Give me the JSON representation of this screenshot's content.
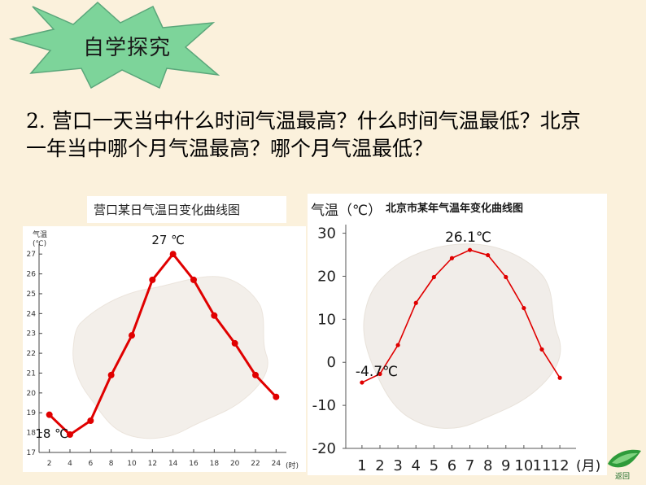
{
  "header": {
    "badge_label": "自学探究"
  },
  "question": {
    "line1": "2. 营口一天当中什么时间气温最高？什么时间气温最低？北京",
    "line2": "一年当中哪个月气温最高？哪个月气温最低？"
  },
  "nav": {
    "back_label": "返回"
  },
  "colors": {
    "background": "#fbf1dc",
    "badge_fill": "#7dd49a",
    "series_red": "#e00000"
  },
  "chart_data": [
    {
      "type": "line",
      "title": "营口某日气温日变化曲线图",
      "ylabel_line1": "气温",
      "ylabel_line2": "(℃)",
      "x_unit": "(时)",
      "x": [
        2,
        4,
        6,
        8,
        10,
        12,
        14,
        16,
        18,
        20,
        22,
        24
      ],
      "x_ticks": [
        2,
        4,
        6,
        8,
        10,
        12,
        14,
        16,
        18,
        20,
        22,
        24
      ],
      "y_ticks": [
        17,
        18,
        19,
        20,
        21,
        22,
        23,
        24,
        25,
        26,
        27
      ],
      "ylim": [
        17,
        27.5
      ],
      "series": [
        {
          "values": [
            18.9,
            17.9,
            18.6,
            20.9,
            22.9,
            25.7,
            27.0,
            25.7,
            23.9,
            22.5,
            20.9,
            19.8
          ]
        }
      ],
      "annotations": [
        {
          "text": "27 ℃",
          "x": 14,
          "y": 27.0
        },
        {
          "text": "18 ℃",
          "x": 4,
          "y": 17.9
        }
      ]
    },
    {
      "type": "line",
      "title": "北京市某年气温年变化曲线图",
      "ylabel": "气温（℃）",
      "x_unit": "(月)",
      "x": [
        1,
        2,
        3,
        4,
        5,
        6,
        7,
        8,
        9,
        10,
        11,
        12
      ],
      "x_ticks": [
        1,
        2,
        3,
        4,
        5,
        6,
        7,
        8,
        9,
        10,
        11,
        12
      ],
      "y_ticks": [
        30,
        20,
        10,
        0,
        -10,
        -20
      ],
      "ylim": [
        -20,
        32
      ],
      "series": [
        {
          "values": [
            -4.7,
            -2.7,
            4.0,
            13.8,
            19.8,
            24.2,
            26.1,
            24.9,
            19.8,
            12.6,
            3.0,
            -3.6
          ]
        }
      ],
      "annotations": [
        {
          "text": "26.1℃",
          "x": 7,
          "y": 26.1
        },
        {
          "text": "-4.7℃",
          "x": 1,
          "y": -4.7
        }
      ]
    }
  ]
}
